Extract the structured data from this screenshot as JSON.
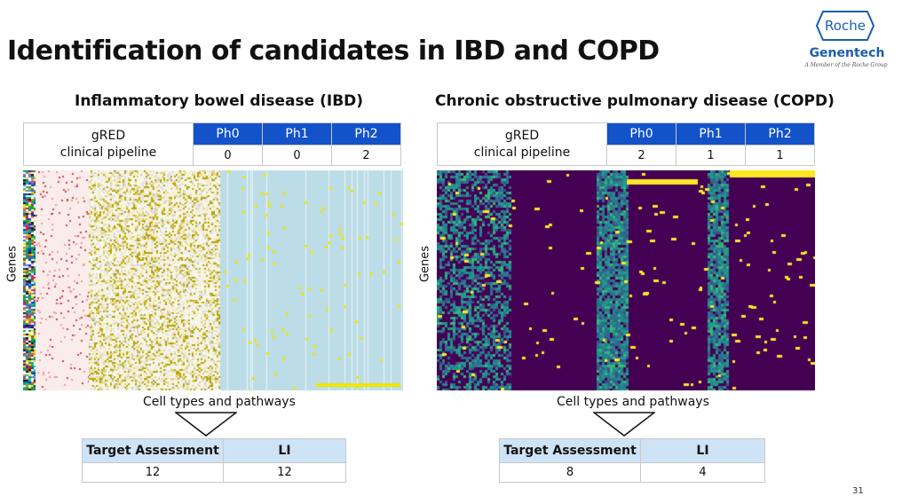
{
  "slide": {
    "title": "Identification of candidates in IBD and COPD",
    "logo": {
      "roche": "Roche",
      "genentech": "Genentech",
      "member": "A Member of the Roche Group"
    },
    "page_number": "31"
  },
  "colors": {
    "phase_header": "#1352c9",
    "assessment_header": "#cfe3f7",
    "viridis_dark": "#440154",
    "viridis_yellow": "#fde725"
  },
  "panels": [
    {
      "title": "Inflammatory bowel disease (IBD)",
      "pipeline": {
        "label_line1": "gRED",
        "label_line2": "clinical pipeline",
        "phases": [
          {
            "name": "Ph0",
            "value": "0"
          },
          {
            "name": "Ph1",
            "value": "0"
          },
          {
            "name": "Ph2",
            "value": "2"
          }
        ]
      },
      "heatmap": {
        "y_label": "Genes",
        "style": "mixed"
      },
      "cell_label": "Cell types and pathways",
      "assessment": {
        "col1": "Target Assessment",
        "col2": "LI",
        "val1": "12",
        "val2": "12"
      }
    },
    {
      "title": "Chronic obstructive pulmonary disease (COPD)",
      "pipeline": {
        "label_line1": "gRED",
        "label_line2": "clinical pipeline",
        "phases": [
          {
            "name": "Ph0",
            "value": "2"
          },
          {
            "name": "Ph1",
            "value": "1"
          },
          {
            "name": "Ph2",
            "value": "1"
          }
        ]
      },
      "heatmap": {
        "y_label": "Genes",
        "style": "viridis"
      },
      "cell_label": "Cell types and pathways",
      "assessment": {
        "col1": "Target Assessment",
        "col2": "LI",
        "val1": "8",
        "val2": "4"
      }
    }
  ]
}
